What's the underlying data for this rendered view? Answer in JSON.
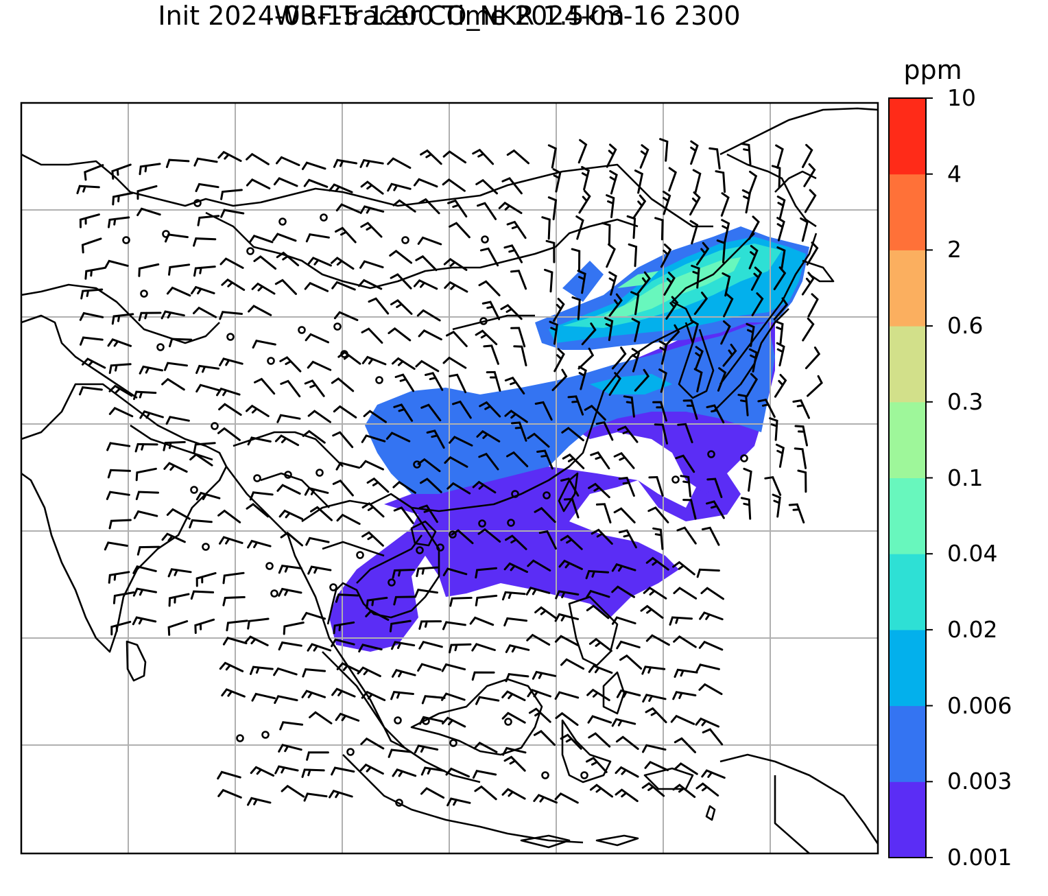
{
  "title": {
    "line1": "WRF-Tracer CO_NKR 1.5km",
    "line2": "Init 2024-03-15 1200 Time 2024-03-16 2300"
  },
  "colorbar": {
    "label": "ppm",
    "ticks": [
      "0.001",
      "0.003",
      "0.006",
      "0.02",
      "0.04",
      "0.1",
      "0.3",
      "0.6",
      "2",
      "4",
      "10"
    ],
    "colors": [
      "#5b2df5",
      "#3474f2",
      "#03b0ec",
      "#2ee0d5",
      "#68f7bd",
      "#9ef79a",
      "#d2e08a",
      "#fbaf5f",
      "#ff7138",
      "#ff2b18"
    ]
  },
  "map": {
    "gridlines": true,
    "grid_color": "#b0b0b0",
    "coastline_color": "#000000",
    "wind_barbs": true
  }
}
